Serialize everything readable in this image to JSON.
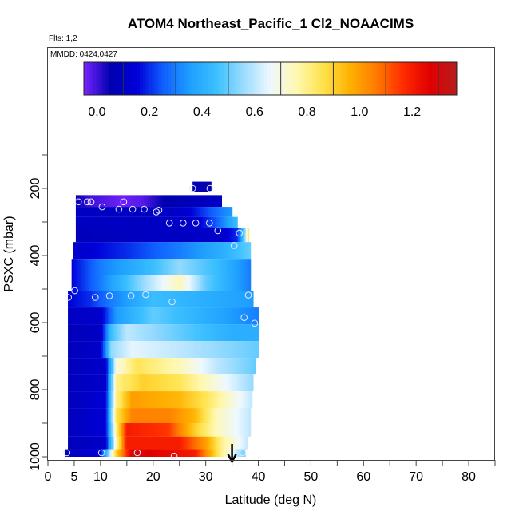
{
  "chart_data": {
    "type": "heatmap",
    "title": "ATOM4 Northeast_Pacific_1 Cl2_NOAACIMS",
    "flights_label": "Flts: 1,2",
    "dates_label": "MMDD: 0424,0427",
    "xlabel": "Latitude (deg N)",
    "ylabel": "PSXC (mbar)",
    "xlim": [
      0,
      85
    ],
    "ylim": [
      1000,
      0
    ],
    "x_ticks": [
      0,
      5,
      10,
      20,
      30,
      40,
      50,
      60,
      70,
      80
    ],
    "y_ticks": [
      200,
      400,
      600,
      800,
      1000
    ],
    "colorbar": {
      "range": [
        -0.05,
        1.37
      ],
      "ticks": [
        0.0,
        0.2,
        0.4,
        0.6,
        0.8,
        1.0,
        1.2
      ],
      "tick_labels": [
        "0.0",
        "0.2",
        "0.4",
        "0.6",
        "0.8",
        "1.0",
        "1.2"
      ],
      "palette": [
        "#7a24ff",
        "#0000b0",
        "#0000d8",
        "#1060ff",
        "#1ea0ff",
        "#3cc0ff",
        "#9cdcff",
        "#eef8ff",
        "#fff8b0",
        "#ffe24a",
        "#ffb000",
        "#ff7a00",
        "#ff2a00",
        "#e00000",
        "#b41e1e"
      ]
    },
    "marker": {
      "latitude": 35,
      "label": "arrow"
    },
    "layers": [
      {
        "p": 200,
        "x0": 27.5,
        "x1": 31,
        "stops": [
          [
            27.5,
            0.05
          ],
          [
            31,
            0.05
          ]
        ]
      },
      {
        "p": 240,
        "x0": 5.3,
        "x1": 33,
        "stops": [
          [
            5.3,
            0.05
          ],
          [
            8,
            0.0
          ],
          [
            14,
            -0.04
          ],
          [
            18,
            -0.02
          ],
          [
            22,
            0.05
          ],
          [
            33,
            0.1
          ]
        ]
      },
      {
        "p": 270,
        "x0": 5.3,
        "x1": 35,
        "stops": [
          [
            5.3,
            0.1
          ],
          [
            20,
            0.1
          ],
          [
            26,
            0.12
          ],
          [
            31,
            0.25
          ],
          [
            35,
            0.35
          ]
        ]
      },
      {
        "p": 300,
        "x0": 5.3,
        "x1": 36,
        "stops": [
          [
            5.3,
            0.1
          ],
          [
            20,
            0.1
          ],
          [
            28,
            0.12
          ],
          [
            32,
            0.25
          ],
          [
            35,
            0.4
          ],
          [
            36,
            0.45
          ]
        ]
      },
      {
        "p": 335,
        "x0": 5.3,
        "x1": 38.2,
        "stops": [
          [
            5.3,
            0.08
          ],
          [
            25,
            0.1
          ],
          [
            33,
            0.12
          ],
          [
            36,
            0.2
          ],
          [
            37.5,
            0.55
          ],
          [
            38.2,
            0.9
          ]
        ]
      },
      {
        "p": 385,
        "x0": 4.8,
        "x1": 38.5,
        "stops": [
          [
            4.8,
            0.12
          ],
          [
            15,
            0.2
          ],
          [
            25,
            0.3
          ],
          [
            33,
            0.4
          ],
          [
            38.5,
            0.5
          ]
        ]
      },
      {
        "p": 435,
        "x0": 4.5,
        "x1": 38.5,
        "stops": [
          [
            4.5,
            0.15
          ],
          [
            10,
            0.3
          ],
          [
            20,
            0.45
          ],
          [
            25,
            0.55
          ],
          [
            32,
            0.45
          ],
          [
            38.5,
            0.3
          ]
        ]
      },
      {
        "p": 480,
        "x0": 4.5,
        "x1": 38.5,
        "stops": [
          [
            4.5,
            0.15
          ],
          [
            10,
            0.3
          ],
          [
            18,
            0.55
          ],
          [
            25,
            0.75
          ],
          [
            30,
            0.5
          ],
          [
            38.5,
            0.3
          ]
        ]
      },
      {
        "p": 530,
        "x0": 3.8,
        "x1": 39,
        "stops": [
          [
            3.8,
            0.15
          ],
          [
            8,
            0.2
          ],
          [
            12,
            0.3
          ],
          [
            20,
            0.45
          ],
          [
            30,
            0.4
          ],
          [
            39,
            0.35
          ]
        ]
      },
      {
        "p": 580,
        "x0": 3.8,
        "x1": 40,
        "stops": [
          [
            3.8,
            0.1
          ],
          [
            10,
            0.12
          ],
          [
            13,
            0.35
          ],
          [
            20,
            0.5
          ],
          [
            30,
            0.4
          ],
          [
            40,
            0.3
          ]
        ]
      },
      {
        "p": 630,
        "x0": 3.8,
        "x1": 40,
        "stops": [
          [
            3.8,
            0.08
          ],
          [
            10,
            0.1
          ],
          [
            12,
            0.45
          ],
          [
            15,
            0.6
          ],
          [
            25,
            0.5
          ],
          [
            35,
            0.4
          ],
          [
            40,
            0.4
          ]
        ]
      },
      {
        "p": 680,
        "x0": 3.8,
        "x1": 40,
        "stops": [
          [
            3.8,
            0.08
          ],
          [
            10,
            0.12
          ],
          [
            12,
            0.55
          ],
          [
            16,
            0.65
          ],
          [
            25,
            0.6
          ],
          [
            40,
            0.5
          ]
        ]
      },
      {
        "p": 730,
        "x0": 3.8,
        "x1": 39.5,
        "stops": [
          [
            3.8,
            0.08
          ],
          [
            11,
            0.12
          ],
          [
            13,
            0.7
          ],
          [
            17,
            0.85
          ],
          [
            25,
            0.75
          ],
          [
            32,
            0.6
          ],
          [
            39.5,
            0.5
          ]
        ]
      },
      {
        "p": 780,
        "x0": 3.8,
        "x1": 39,
        "stops": [
          [
            3.8,
            0.08
          ],
          [
            11,
            0.12
          ],
          [
            13,
            0.8
          ],
          [
            18,
            0.9
          ],
          [
            25,
            0.85
          ],
          [
            32,
            0.7
          ],
          [
            39,
            0.55
          ]
        ]
      },
      {
        "p": 830,
        "x0": 3.8,
        "x1": 38.8,
        "stops": [
          [
            3.8,
            0.08
          ],
          [
            11,
            0.15
          ],
          [
            13,
            0.8
          ],
          [
            16,
            1.0
          ],
          [
            25,
            0.95
          ],
          [
            30,
            0.85
          ],
          [
            38.8,
            0.6
          ]
        ]
      },
      {
        "p": 880,
        "x0": 3.8,
        "x1": 38.5,
        "stops": [
          [
            3.8,
            0.08
          ],
          [
            11,
            0.15
          ],
          [
            13,
            0.85
          ],
          [
            16,
            1.05
          ],
          [
            23,
            1.05
          ],
          [
            28,
            0.95
          ],
          [
            32,
            0.75
          ],
          [
            38.5,
            0.6
          ]
        ]
      },
      {
        "p": 920,
        "x0": 3.8,
        "x1": 38.5,
        "stops": [
          [
            3.8,
            0.08
          ],
          [
            11,
            0.15
          ],
          [
            13,
            0.8
          ],
          [
            15,
            1.2
          ],
          [
            23,
            1.15
          ],
          [
            28,
            0.9
          ],
          [
            32,
            0.75
          ],
          [
            38.5,
            0.6
          ]
        ]
      },
      {
        "p": 960,
        "x0": 3.8,
        "x1": 38,
        "stops": [
          [
            3.8,
            0.08
          ],
          [
            11,
            0.12
          ],
          [
            13,
            0.75
          ],
          [
            15,
            1.2
          ],
          [
            25,
            1.2
          ],
          [
            30,
            1.0
          ],
          [
            33,
            0.8
          ],
          [
            38,
            0.6
          ]
        ]
      },
      {
        "p": 995,
        "x0": 3.3,
        "x1": 37.5,
        "stops": [
          [
            3.3,
            0.08
          ],
          [
            10,
            0.15
          ],
          [
            13,
            0.9
          ],
          [
            16,
            1.3
          ],
          [
            28,
            1.2
          ],
          [
            33,
            0.8
          ],
          [
            37.5,
            0.5
          ]
        ]
      }
    ],
    "points": [
      [
        27.5,
        200
      ],
      [
        30.8,
        200
      ],
      [
        5.8,
        240
      ],
      [
        7.5,
        240
      ],
      [
        8.2,
        240
      ],
      [
        14.4,
        240
      ],
      [
        10.3,
        255
      ],
      [
        13.5,
        262
      ],
      [
        16.1,
        262
      ],
      [
        18.3,
        262
      ],
      [
        20.6,
        270
      ],
      [
        21.1,
        265
      ],
      [
        23.1,
        303
      ],
      [
        25.7,
        303
      ],
      [
        28.1,
        303
      ],
      [
        30.7,
        303
      ],
      [
        32.3,
        326
      ],
      [
        36.4,
        333
      ],
      [
        35.4,
        370
      ],
      [
        5.1,
        505
      ],
      [
        3.9,
        525
      ],
      [
        9,
        525
      ],
      [
        11.7,
        520
      ],
      [
        15.8,
        520
      ],
      [
        18.6,
        517
      ],
      [
        23.6,
        538
      ],
      [
        38.1,
        518
      ],
      [
        37.3,
        585
      ],
      [
        39.3,
        602
      ],
      [
        3.6,
        988
      ],
      [
        10.2,
        988
      ],
      [
        17,
        988
      ],
      [
        24,
        998
      ],
      [
        37,
        988
      ]
    ]
  }
}
